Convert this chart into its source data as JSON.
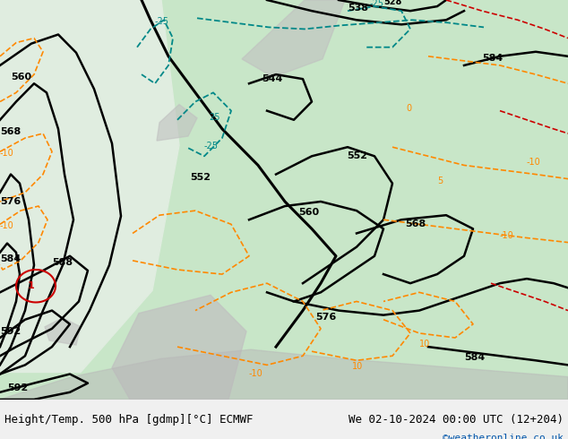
{
  "title_left": "Height/Temp. 500 hPa [gdmp][°C] ECMWF",
  "title_right": "We 02-10-2024 00:00 UTC (12+204)",
  "watermark": "©weatheronline.co.uk",
  "watermark_color": "#0055aa",
  "bg_color": "#f0f0f0",
  "map_bg_light": "#c8e6c8",
  "contour_black_color": "#000000",
  "contour_teal_color": "#008888",
  "contour_orange_color": "#ff8800",
  "contour_red_color": "#cc0000",
  "label_font_size": 8,
  "small_label_font_size": 7,
  "title_font_size": 9,
  "watermark_font_size": 8,
  "fig_width": 6.34,
  "fig_height": 4.9,
  "dpi": 100
}
